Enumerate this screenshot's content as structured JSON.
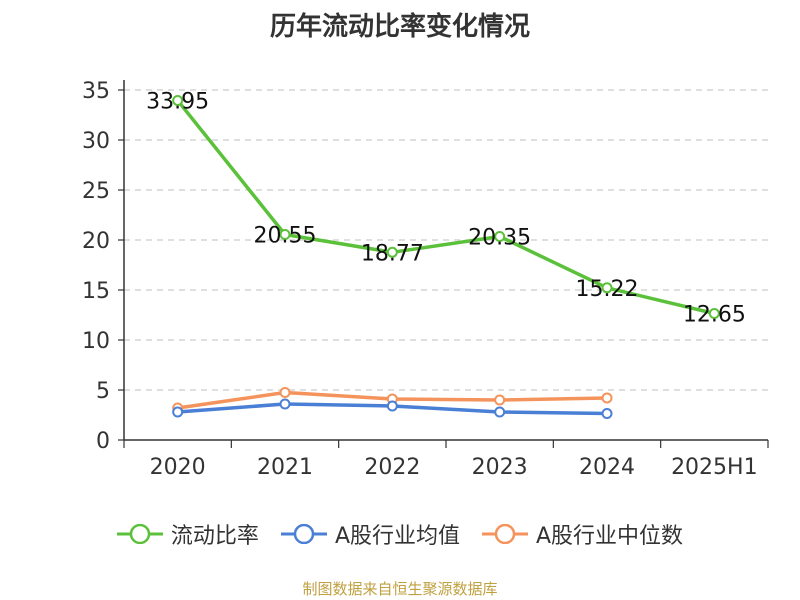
{
  "chart_data": {
    "type": "line",
    "title": "历年流动比率变化情况",
    "categories": [
      "2020",
      "2021",
      "2022",
      "2023",
      "2024",
      "2025H1"
    ],
    "ylim": [
      0,
      35
    ],
    "yticks": [
      "0",
      "5",
      "10",
      "15",
      "20",
      "25",
      "30",
      "35"
    ],
    "grid": true,
    "legend_position": "bottom",
    "series": [
      {
        "name": "流动比率",
        "color": "#5cc13a",
        "values": [
          33.95,
          20.55,
          18.77,
          20.35,
          15.22,
          12.65
        ],
        "labels": [
          "33.95",
          "20.55",
          "18.77",
          "20.35",
          "15.22",
          "12.65"
        ]
      },
      {
        "name": "A股行业均值",
        "color": "#4a7fd6",
        "values": [
          2.8,
          3.6,
          3.4,
          2.8,
          2.65,
          null
        ]
      },
      {
        "name": "A股行业中位数",
        "color": "#f4935b",
        "values": [
          3.2,
          4.75,
          4.1,
          4.0,
          4.2,
          null
        ]
      }
    ]
  },
  "source_note": "制图数据来自恒生聚源数据库"
}
